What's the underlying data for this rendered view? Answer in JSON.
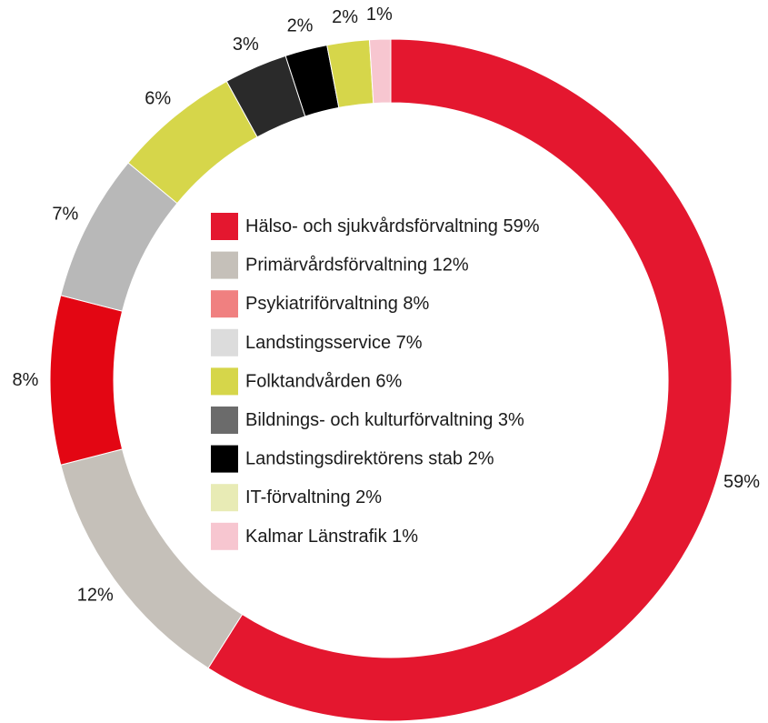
{
  "chart_data": {
    "type": "pie",
    "donut": true,
    "legend_position": "center",
    "title": "",
    "slices": [
      {
        "label": "Hälso- och sjukvårdsförvaltning 59%",
        "value": 59,
        "value_label": "59%",
        "color": "#e4172f",
        "legend_color": "#e4172f"
      },
      {
        "label": "Primärvårdsförvaltning 12%",
        "value": 12,
        "value_label": "12%",
        "color": "#c5c0b9",
        "legend_color": "#c5c0b9"
      },
      {
        "label": "Psykiatriförvaltning 8%",
        "value": 8,
        "value_label": "8%",
        "color": "#e30613",
        "legend_color": "#f08080"
      },
      {
        "label": "Landstingsservice 7%",
        "value": 7,
        "value_label": "7%",
        "color": "#b8b8b8",
        "legend_color": "#dcdcdc"
      },
      {
        "label": "Folktandvården 6%",
        "value": 6,
        "value_label": "6%",
        "color": "#d6d64a",
        "legend_color": "#d6d64a"
      },
      {
        "label": "Bildnings- och kulturförvaltning 3%",
        "value": 3,
        "value_label": "3%",
        "color": "#2a2a2a",
        "legend_color": "#6b6b6b"
      },
      {
        "label": "Landstingsdirektörens stab 2%",
        "value": 2,
        "value_label": "2%",
        "color": "#000000",
        "legend_color": "#000000"
      },
      {
        "label": "IT-förvaltning 2%",
        "value": 2,
        "value_label": "2%",
        "color": "#d6d64a",
        "legend_color": "#e8ebb5"
      },
      {
        "label": "Kalmar Länstrafik 1%",
        "value": 1,
        "value_label": "1%",
        "color": "#f7c6d0",
        "legend_color": "#f7c6d0"
      }
    ]
  }
}
